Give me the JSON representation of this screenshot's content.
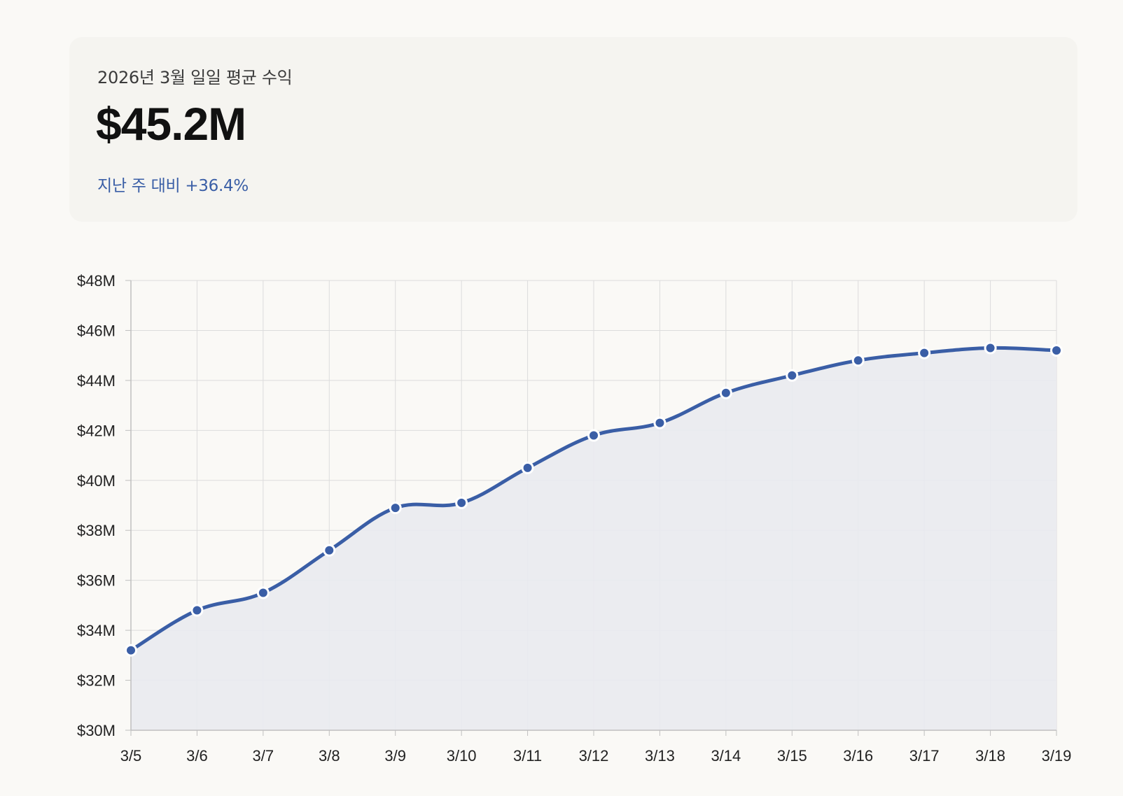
{
  "card": {
    "subtitle": "2026년 3월 일일 평균 수익",
    "value": "$45.2M",
    "change": "지난 주 대비 +36.4%"
  },
  "colors": {
    "line": "#3a5ea6",
    "fill": "#e9eaf0",
    "grid": "#dcdcdc",
    "axis": "#bfbfbf"
  },
  "chart_data": {
    "type": "area",
    "categories": [
      "3/5",
      "3/6",
      "3/7",
      "3/8",
      "3/9",
      "3/10",
      "3/11",
      "3/12",
      "3/13",
      "3/14",
      "3/15",
      "3/16",
      "3/17",
      "3/18",
      "3/19"
    ],
    "series": [
      {
        "values": [
          33.2,
          34.8,
          35.5,
          37.2,
          38.9,
          39.1,
          40.5,
          41.8,
          42.3,
          43.5,
          44.2,
          44.8,
          45.1,
          45.3,
          45.2
        ]
      }
    ],
    "ylim": [
      30,
      48
    ],
    "yticks": [
      30,
      32,
      34,
      36,
      38,
      40,
      42,
      44,
      46,
      48
    ],
    "ytick_labels": [
      "$30M",
      "$32M",
      "$34M",
      "$36M",
      "$38M",
      "$40M",
      "$42M",
      "$44M",
      "$46M",
      "$48M"
    ],
    "grid": true,
    "smooth": true
  }
}
